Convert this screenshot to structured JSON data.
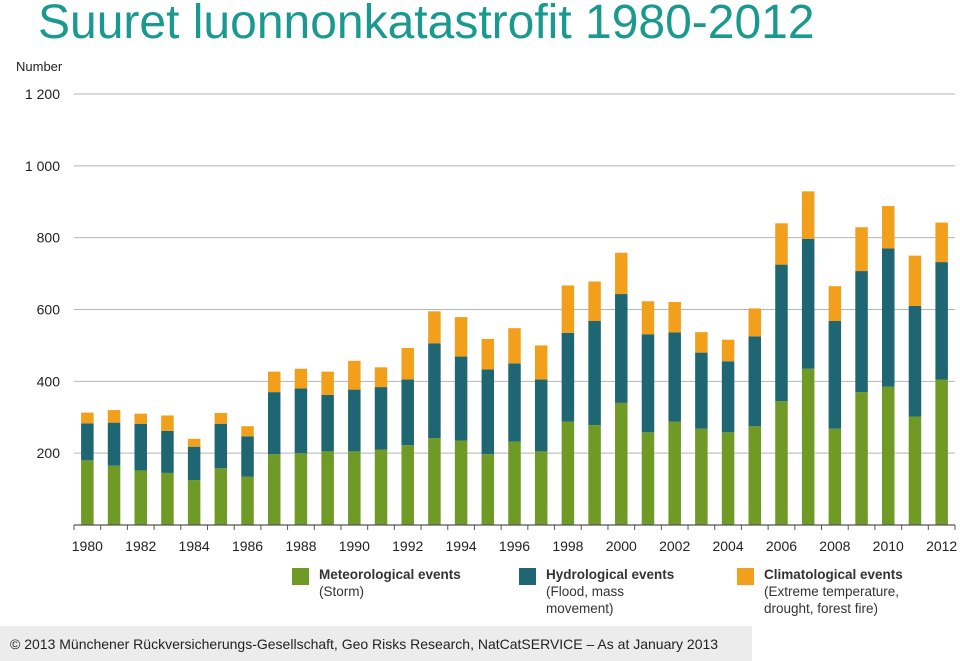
{
  "title": "Suuret luonnonkatastrofit 1980-2012",
  "footer": "© 2013 Münchener Rückversicherungs-Gesellschaft, Geo Risks Research, NatCatSERVICE – As at January 2013",
  "legend": [
    {
      "name": "Meteorological events",
      "sub": "(Storm)",
      "color": "#6f9a25"
    },
    {
      "name": "Hydrological events",
      "sub": "(Flood, mass\nmovement)",
      "color": "#1f6673"
    },
    {
      "name": "Climatological events",
      "sub": "(Extreme temperature,\ndrought, forest fire)",
      "color": "#f2a01c"
    }
  ],
  "chart_data": {
    "type": "bar",
    "stacked": true,
    "ylabel": "Number",
    "ylim": [
      0,
      1200
    ],
    "yticks": [
      200,
      400,
      600,
      800,
      1000,
      1200
    ],
    "ytick_labels": [
      "200",
      "400",
      "600",
      "800",
      "1 000",
      "1 200"
    ],
    "grid": true,
    "legend_position": "bottom",
    "categories": [
      "1980",
      "1981",
      "1982",
      "1983",
      "1984",
      "1985",
      "1986",
      "1987",
      "1988",
      "1989",
      "1990",
      "1991",
      "1992",
      "1993",
      "1994",
      "1995",
      "1996",
      "1997",
      "1998",
      "1999",
      "2000",
      "2001",
      "2002",
      "2003",
      "2004",
      "2005",
      "2006",
      "2007",
      "2008",
      "2009",
      "2010",
      "2011",
      "2012"
    ],
    "x_tick_labels": [
      "1980",
      "1982",
      "1984",
      "1986",
      "1988",
      "1990",
      "1992",
      "1994",
      "1996",
      "1998",
      "2000",
      "2002",
      "2004",
      "2006",
      "2008",
      "2010",
      "2012"
    ],
    "series": [
      {
        "name": "Meteorological events",
        "color": "#6f9a25",
        "values": [
          180,
          165,
          152,
          145,
          125,
          158,
          135,
          197,
          200,
          205,
          205,
          210,
          222,
          242,
          235,
          197,
          232,
          205,
          288,
          278,
          340,
          258,
          288,
          268,
          258,
          275,
          345,
          435,
          268,
          370,
          385,
          302,
          405
        ]
      },
      {
        "name": "Hydrological events",
        "color": "#1f6673",
        "values": [
          103,
          120,
          130,
          117,
          93,
          124,
          112,
          173,
          180,
          157,
          172,
          174,
          183,
          264,
          234,
          236,
          218,
          200,
          247,
          290,
          303,
          273,
          248,
          212,
          198,
          250,
          380,
          362,
          300,
          337,
          385,
          308,
          327
        ]
      },
      {
        "name": "Climatological events",
        "color": "#f2a01c",
        "values": [
          30,
          35,
          28,
          43,
          22,
          30,
          28,
          57,
          55,
          65,
          80,
          55,
          88,
          89,
          110,
          85,
          98,
          95,
          132,
          110,
          115,
          92,
          85,
          57,
          60,
          78,
          115,
          132,
          97,
          122,
          118,
          140,
          110
        ]
      }
    ]
  }
}
